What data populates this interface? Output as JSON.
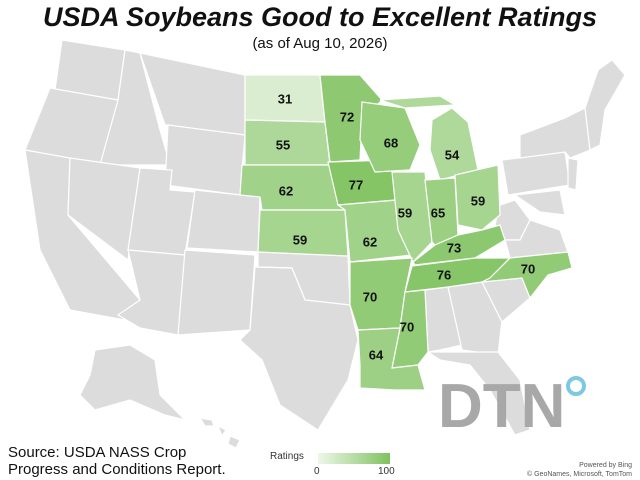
{
  "header": {
    "title": "USDA Soybeans Good to Excellent Ratings",
    "subtitle": "(as of Aug 10, 2026)"
  },
  "colors": {
    "no_data": "#dcdcdc",
    "scale_low": "#eef7ea",
    "scale_high": "#7fc25f",
    "state_border": "#ffffff"
  },
  "map_data": {
    "value_field": "soybean_good_to_excellent_pct",
    "scale": [
      0,
      100
    ],
    "states": [
      {
        "state": "North Dakota",
        "value": 31
      },
      {
        "state": "Minnesota",
        "value": 72
      },
      {
        "state": "South Dakota",
        "value": 55
      },
      {
        "state": "Wisconsin",
        "value": 68
      },
      {
        "state": "Michigan",
        "value": 54
      },
      {
        "state": "Nebraska",
        "value": 62
      },
      {
        "state": "Iowa",
        "value": 77
      },
      {
        "state": "Illinois",
        "value": 59
      },
      {
        "state": "Indiana",
        "value": 65
      },
      {
        "state": "Ohio",
        "value": 59
      },
      {
        "state": "Kansas",
        "value": 59
      },
      {
        "state": "Missouri",
        "value": 62
      },
      {
        "state": "Kentucky",
        "value": 73
      },
      {
        "state": "Tennessee",
        "value": 76
      },
      {
        "state": "North Carolina",
        "value": 70
      },
      {
        "state": "Arkansas",
        "value": 70
      },
      {
        "state": "Mississippi",
        "value": 70
      },
      {
        "state": "Louisiana",
        "value": 64
      }
    ]
  },
  "source": {
    "line1": "Source: USDA NASS Crop",
    "line2": "Progress and Conditions Report."
  },
  "legend": {
    "title": "Ratings",
    "min_label": "0",
    "max_label": "100"
  },
  "credits": {
    "line1": "Powered by Bing",
    "line2": "© GeoNames, Microsoft, TomTom"
  },
  "logo": {
    "text": "DTN",
    "icon": "dtn-logo"
  }
}
